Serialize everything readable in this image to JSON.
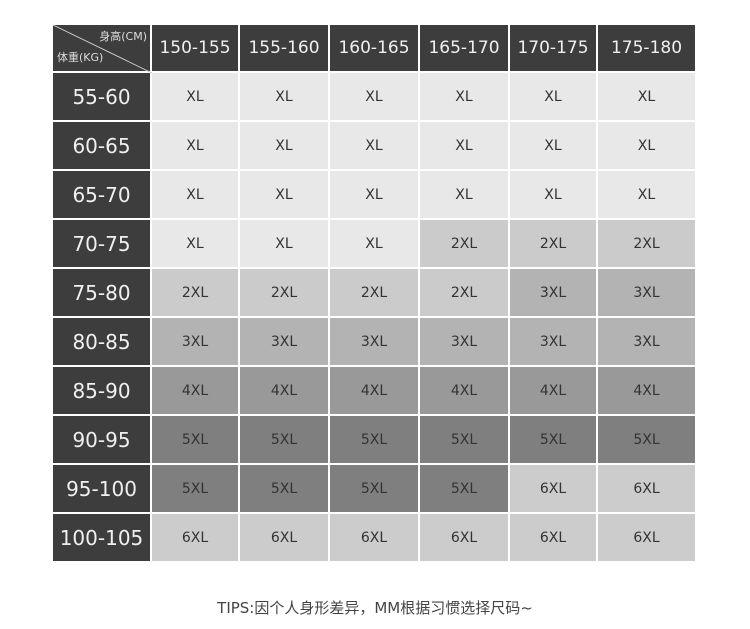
{
  "header": {
    "height_label": "身高(CM)",
    "weight_label": "体重(KG)",
    "heights": [
      "150-155",
      "155-160",
      "160-165",
      "165-170",
      "170-175",
      "175-180"
    ]
  },
  "rows": [
    {
      "weight": "55-60",
      "sizes": [
        "XL",
        "XL",
        "XL",
        "XL",
        "XL",
        "XL"
      ]
    },
    {
      "weight": "60-65",
      "sizes": [
        "XL",
        "XL",
        "XL",
        "XL",
        "XL",
        "XL"
      ]
    },
    {
      "weight": "65-70",
      "sizes": [
        "XL",
        "XL",
        "XL",
        "XL",
        "XL",
        "XL"
      ]
    },
    {
      "weight": "70-75",
      "sizes": [
        "XL",
        "XL",
        "XL",
        "2XL",
        "2XL",
        "2XL"
      ]
    },
    {
      "weight": "75-80",
      "sizes": [
        "2XL",
        "2XL",
        "2XL",
        "2XL",
        "3XL",
        "3XL"
      ]
    },
    {
      "weight": "80-85",
      "sizes": [
        "3XL",
        "3XL",
        "3XL",
        "3XL",
        "3XL",
        "3XL"
      ]
    },
    {
      "weight": "85-90",
      "sizes": [
        "4XL",
        "4XL",
        "4XL",
        "4XL",
        "4XL",
        "4XL"
      ]
    },
    {
      "weight": "90-95",
      "sizes": [
        "5XL",
        "5XL",
        "5XL",
        "5XL",
        "5XL",
        "5XL"
      ]
    },
    {
      "weight": "95-100",
      "sizes": [
        "5XL",
        "5XL",
        "5XL",
        "5XL",
        "6XL",
        "6XL"
      ]
    },
    {
      "weight": "100-105",
      "sizes": [
        "6XL",
        "6XL",
        "6XL",
        "6XL",
        "6XL",
        "6XL"
      ]
    }
  ],
  "size_colors": {
    "XL": "#e8e8e8",
    "2XL": "#cbcbcb",
    "3XL": "#b3b3b3",
    "4XL": "#999999",
    "5XL": "#7f7f7f",
    "6XL": "#cccccc"
  },
  "header_color": "#3d3d3d",
  "tips": "TIPS:因个人身形差异，MM根据习惯选择尺码~"
}
